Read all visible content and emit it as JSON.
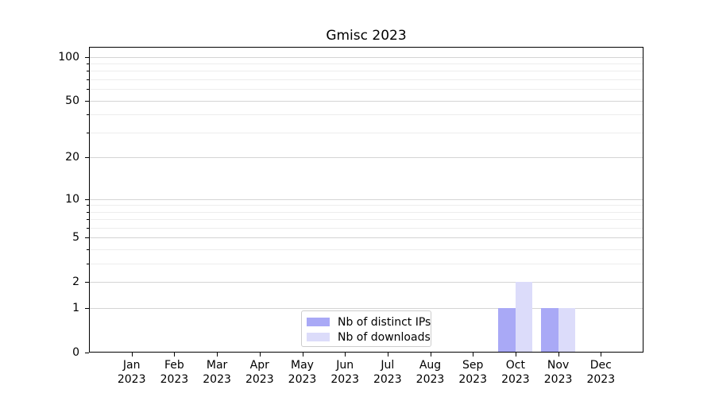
{
  "chart_data": {
    "type": "bar",
    "title": "Gmisc 2023",
    "x_months": [
      "Jan",
      "Feb",
      "Mar",
      "Apr",
      "May",
      "Jun",
      "Jul",
      "Aug",
      "Sep",
      "Oct",
      "Nov",
      "Dec"
    ],
    "x_year": "2023",
    "series": [
      {
        "name": "Nb of distinct IPs",
        "color": "#a9a9f6",
        "values": [
          0,
          0,
          0,
          0,
          0,
          0,
          0,
          0,
          0,
          1,
          1,
          0
        ]
      },
      {
        "name": "Nb of downloads",
        "color": "#dcdcfa",
        "values": [
          0,
          0,
          0,
          0,
          0,
          0,
          0,
          0,
          0,
          2,
          1,
          0
        ]
      }
    ],
    "yscale": "log1p",
    "ylim": [
      0,
      117
    ],
    "yticks_major": [
      0,
      1,
      2,
      5,
      10,
      20,
      50,
      100
    ],
    "yticks_minor": [
      3,
      4,
      6,
      7,
      8,
      9,
      30,
      40,
      60,
      70,
      80,
      90
    ],
    "grid": true,
    "legend_position": "lower center"
  },
  "colors": {
    "grid_major": "#d4d4d4",
    "grid_minor": "#ededed",
    "spine": "#000000",
    "text": "#000000"
  }
}
